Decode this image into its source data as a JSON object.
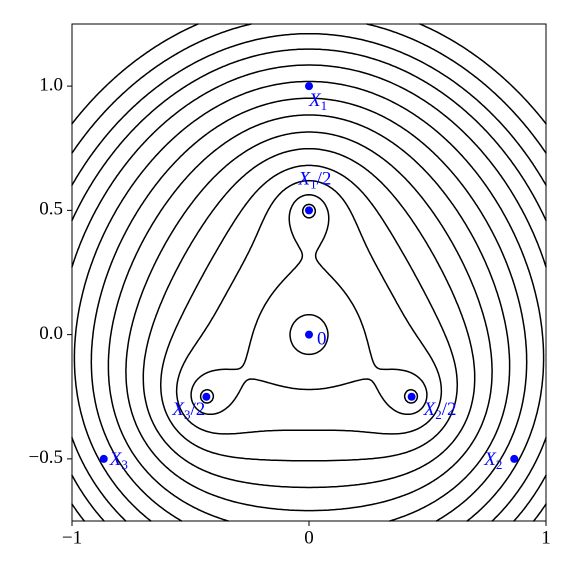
{
  "chart_data": {
    "type": "contour",
    "xlim": [
      -1,
      1
    ],
    "ylim": [
      -0.75,
      1.25
    ],
    "xticks": [
      {
        "value": -1,
        "label": "−1"
      },
      0,
      1
    ],
    "yticks": [
      {
        "value": -0.5,
        "label": "−0.5"
      },
      {
        "value": 0,
        "label": "0.0"
      },
      0.5,
      {
        "value": 1,
        "label": "1.0"
      }
    ],
    "contour_levels": [
      0.01,
      0.03,
      0.07,
      0.13,
      0.22,
      0.34,
      0.5,
      0.7,
      0.95,
      1.25,
      1.6,
      2.0,
      2.5,
      3.1
    ],
    "line_color": "#000000",
    "point_color": "#0000ff",
    "points": [
      {
        "label": "X",
        "sub": "1",
        "x": 0,
        "y": 1
      },
      {
        "label": "X",
        "sub": "1",
        "suffix": "/2",
        "x": 0,
        "y": 0.5
      },
      {
        "label": "0",
        "x": 0,
        "y": 0
      },
      {
        "label": "X",
        "sub": "3",
        "suffix": "/2",
        "x": -0.433,
        "y": -0.25
      },
      {
        "label": "X",
        "sub": "2",
        "suffix": "/2",
        "x": 0.433,
        "y": -0.25
      },
      {
        "label": "X",
        "sub": "3",
        "x": -0.866,
        "y": -0.5
      },
      {
        "label": "X",
        "sub": "2",
        "x": 0.866,
        "y": -0.5
      }
    ]
  }
}
